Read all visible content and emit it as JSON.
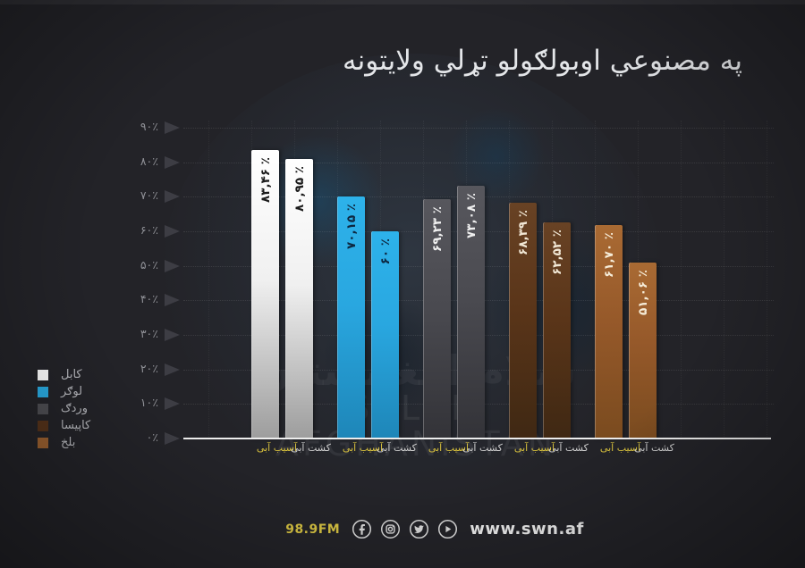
{
  "title": "په مصنوعي اوبولګولو تړلي ولايتونه",
  "watermark": {
    "arabic": "سلام افغانستان",
    "latin": "SALAM AFGHANISTAN"
  },
  "footer": {
    "fm_label": "98.9FM",
    "url": "www.swn.af",
    "icons": [
      "facebook-icon",
      "instagram-icon",
      "twitter-icon",
      "play-icon"
    ]
  },
  "colors": {
    "background": "#232328",
    "axis": "#ededed",
    "tick_text": "#8f9096",
    "sublabel_yellow": "#d9c23d",
    "sublabel_white": "#cfcfcf",
    "fm_yellow": "#d6c242"
  },
  "chart_data": {
    "type": "bar",
    "title": "په مصنوعي اوبولګولو تړلي ولايتونه",
    "unit": "%",
    "ylim": [
      0,
      90
    ],
    "grid": true,
    "legend_position": "left-bottom",
    "y_ticks": [
      {
        "value": 90,
        "label": "۹۰٪"
      },
      {
        "value": 80,
        "label": "۸۰٪"
      },
      {
        "value": 70,
        "label": "۷۰٪"
      },
      {
        "value": 60,
        "label": "۶۰٪"
      },
      {
        "value": 50,
        "label": "۵۰٪"
      },
      {
        "value": 40,
        "label": "۴۰٪"
      },
      {
        "value": 30,
        "label": "۳۰٪"
      },
      {
        "value": 20,
        "label": "۲۰٪"
      },
      {
        "value": 10,
        "label": "۱۰٪"
      },
      {
        "value": 0,
        "label": "۰٪"
      }
    ],
    "series_labels": {
      "left": {
        "text": "آسیب آبی",
        "color": "#d9c23d"
      },
      "right": {
        "text": "کشت آبی",
        "color": "#cfcfcf"
      }
    },
    "groups": [
      {
        "province": "کابل",
        "swatch": "#ffffff",
        "gradient": [
          "#ffffff",
          "#f0f0f0",
          "#9d9d9d"
        ],
        "value_color": "#1c1c1c",
        "bars": [
          {
            "sublabel": "آسیب آبی",
            "value": 83.46,
            "display": "۸۳,۴۶ ٪"
          },
          {
            "sublabel": "کشت آبی",
            "value": 80.95,
            "display": "۸۰,۹۵ ٪"
          }
        ]
      },
      {
        "province": "لوګر",
        "swatch": "#29abe2",
        "gradient": [
          "#2db2ea",
          "#29a7e0",
          "#1e86b8"
        ],
        "value_color": "#0d2740",
        "bars": [
          {
            "sublabel": "آسیب آبی",
            "value": 70.15,
            "display": "۷۰,۱۵ ٪"
          },
          {
            "sublabel": "کشت آبی",
            "value": 60,
            "display": "۶۰ ٪"
          }
        ]
      },
      {
        "province": "وردګ",
        "swatch": "#4e4e53",
        "gradient": [
          "#57575d",
          "#4a4a50",
          "#333338"
        ],
        "value_color": "#efefef",
        "bars": [
          {
            "sublabel": "آسیب آبی",
            "value": 69.23,
            "display": "۶۹,۲۳ ٪"
          },
          {
            "sublabel": "کشت آبی",
            "value": 73.08,
            "display": "۷۳,۰۸ ٪"
          }
        ]
      },
      {
        "province": "کاپیسا",
        "swatch": "#56331a",
        "gradient": [
          "#684224",
          "#5a3519",
          "#3f2813"
        ],
        "value_color": "#f1e7d5",
        "bars": [
          {
            "sublabel": "آسیب آبی",
            "value": 68.39,
            "display": "۶۸,۳۹ ٪"
          },
          {
            "sublabel": "کشت آبی",
            "value": 62.52,
            "display": "۶۲,۵۲ ٪"
          }
        ]
      },
      {
        "province": "بلخ",
        "swatch": "#9c6130",
        "gradient": [
          "#a96a33",
          "#96592a",
          "#7a4b1f"
        ],
        "value_color": "#f6ecd8",
        "bars": [
          {
            "sublabel": "آسیب آبی",
            "value": 61.7,
            "display": "۶۱,۷۰ ٪"
          },
          {
            "sublabel": "کشت آبی",
            "value": 51.06,
            "display": "۵۱,۰۶ ٪"
          }
        ]
      }
    ]
  }
}
